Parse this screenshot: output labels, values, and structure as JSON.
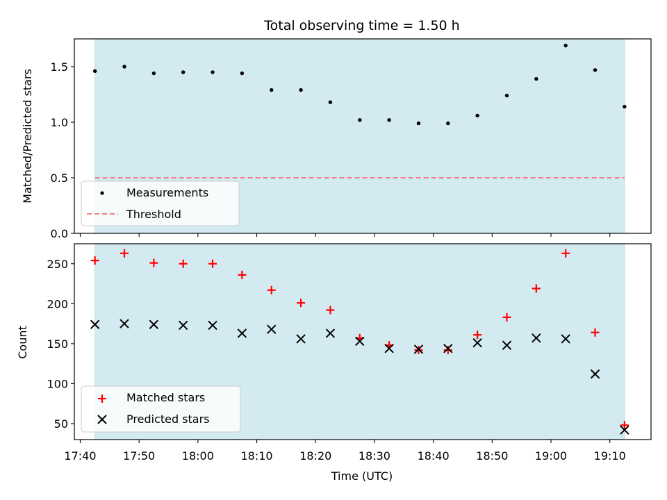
{
  "figure_title": "Total observing time = 1.50 h",
  "colors": {
    "observing_window": "#d3eaf0",
    "measurement_marker": "#000000",
    "threshold_line": "#f08080",
    "matched_marker": "#ff0000",
    "predicted_marker": "#000000"
  },
  "chart_data": [
    {
      "type": "scatter",
      "panel": "top",
      "title": "Total observing time = 1.50 h",
      "xlabel": "",
      "ylabel": "Matched/Predicted stars",
      "ylim": [
        0,
        1.75
      ],
      "y_ticks": [
        "0.0",
        "0.5",
        "1.0",
        "1.5"
      ],
      "x_ticks": [
        "17:40",
        "17:50",
        "18:00",
        "18:10",
        "18:20",
        "18:30",
        "18:40",
        "18:50",
        "19:00",
        "19:10"
      ],
      "xlim": [
        "17:39",
        "19:17"
      ],
      "shaded_span": [
        "17:42.5",
        "19:12.5"
      ],
      "series": [
        {
          "name": "Measurements",
          "marker": "dot",
          "x": [
            "17:42.5",
            "17:47.5",
            "17:52.5",
            "17:57.5",
            "18:02.5",
            "18:07.5",
            "18:12.5",
            "18:17.5",
            "18:22.5",
            "18:27.5",
            "18:32.5",
            "18:37.5",
            "18:42.5",
            "18:47.5",
            "18:52.5",
            "18:57.5",
            "19:02.5",
            "19:07.5",
            "19:12.5"
          ],
          "y": [
            1.46,
            1.5,
            1.44,
            1.45,
            1.45,
            1.44,
            1.29,
            1.29,
            1.18,
            1.02,
            1.02,
            0.99,
            0.99,
            1.06,
            1.24,
            1.39,
            1.69,
            1.47,
            1.14
          ]
        },
        {
          "name": "Threshold",
          "style": "dashed",
          "x": [
            "17:42.5",
            "19:12.5"
          ],
          "y": [
            0.5,
            0.5
          ]
        }
      ],
      "legend": "lower-left"
    },
    {
      "type": "scatter",
      "panel": "bottom",
      "xlabel": "Time (UTC)",
      "ylabel": "Count",
      "ylim": [
        30,
        275
      ],
      "y_ticks": [
        "50",
        "100",
        "150",
        "200",
        "250"
      ],
      "x_ticks": [
        "17:40",
        "17:50",
        "18:00",
        "18:10",
        "18:20",
        "18:30",
        "18:40",
        "18:50",
        "19:00",
        "19:10"
      ],
      "xlim": [
        "17:39",
        "19:17"
      ],
      "shaded_span": [
        "17:42.5",
        "19:12.5"
      ],
      "series": [
        {
          "name": "Matched stars",
          "marker": "plus",
          "x": [
            "17:42.5",
            "17:47.5",
            "17:52.5",
            "17:57.5",
            "18:02.5",
            "18:07.5",
            "18:12.5",
            "18:17.5",
            "18:22.5",
            "18:27.5",
            "18:32.5",
            "18:37.5",
            "18:42.5",
            "18:47.5",
            "18:52.5",
            "18:57.5",
            "19:02.5",
            "19:07.5",
            "19:12.5"
          ],
          "y": [
            254,
            263,
            251,
            250,
            250,
            236,
            217,
            201,
            192,
            157,
            148,
            142,
            142,
            161,
            183,
            219,
            263,
            164,
            48
          ]
        },
        {
          "name": "Predicted stars",
          "marker": "x",
          "x": [
            "17:42.5",
            "17:47.5",
            "17:52.5",
            "17:57.5",
            "18:02.5",
            "18:07.5",
            "18:12.5",
            "18:17.5",
            "18:22.5",
            "18:27.5",
            "18:32.5",
            "18:37.5",
            "18:42.5",
            "18:47.5",
            "18:52.5",
            "18:57.5",
            "19:02.5",
            "19:07.5",
            "19:12.5"
          ],
          "y": [
            174,
            175,
            174,
            173,
            173,
            163,
            168,
            156,
            163,
            153,
            144,
            143,
            144,
            151,
            148,
            157,
            156,
            112,
            42
          ]
        }
      ],
      "legend": "lower-left"
    }
  ]
}
